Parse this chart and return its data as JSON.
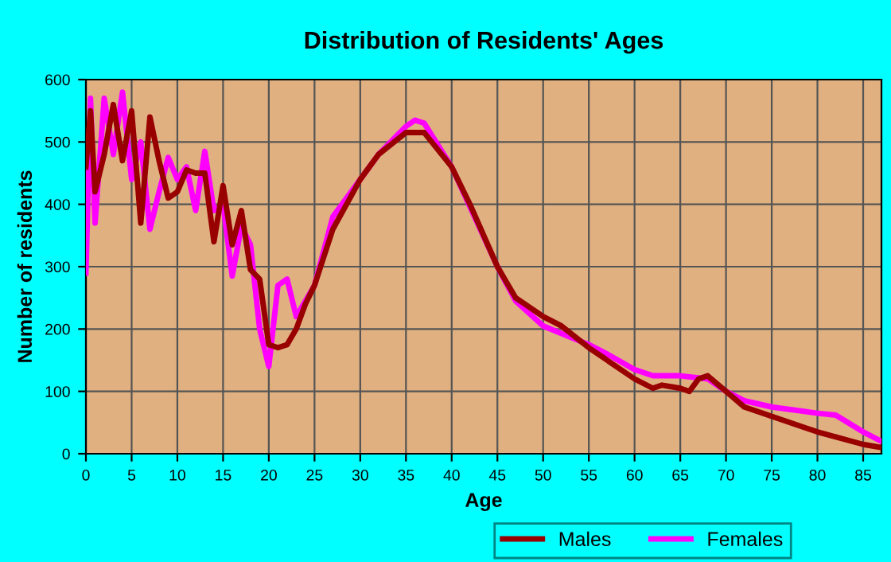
{
  "chart_data": {
    "type": "line",
    "title": "Distribution of Residents' Ages",
    "xlabel": "Age",
    "ylabel": "Number of residents",
    "series": [
      {
        "name": "Males",
        "color": "#990000",
        "x": [
          0,
          0.5,
          1,
          2,
          3,
          4,
          5,
          6,
          7,
          8,
          9,
          10,
          11,
          12,
          13,
          14,
          15,
          16,
          17,
          18,
          19,
          20,
          21,
          22,
          23,
          24,
          25,
          27,
          30,
          32,
          35,
          37,
          40,
          42,
          45,
          47,
          50,
          52,
          55,
          57,
          60,
          62,
          63,
          65,
          66,
          67,
          68,
          70,
          72,
          75,
          80,
          85,
          87
        ],
        "values": [
          460,
          550,
          420,
          480,
          560,
          470,
          550,
          370,
          540,
          470,
          410,
          420,
          455,
          450,
          450,
          340,
          430,
          335,
          390,
          295,
          280,
          175,
          170,
          175,
          200,
          240,
          270,
          360,
          440,
          480,
          515,
          515,
          460,
          400,
          300,
          250,
          220,
          205,
          170,
          150,
          120,
          105,
          110,
          105,
          100,
          120,
          125,
          100,
          75,
          60,
          35,
          15,
          10
        ]
      },
      {
        "name": "Females",
        "color": "#ff00ff",
        "x": [
          0,
          0.5,
          1,
          2,
          3,
          4,
          5,
          6,
          7,
          8,
          9,
          10,
          11,
          12,
          13,
          14,
          15,
          16,
          17,
          18,
          19,
          20,
          21,
          22,
          23,
          25,
          27,
          30,
          32,
          35,
          36,
          37,
          40,
          45,
          47,
          50,
          55,
          57,
          60,
          62,
          65,
          68,
          70,
          72,
          75,
          80,
          82,
          85,
          87
        ],
        "values": [
          290,
          570,
          370,
          570,
          480,
          580,
          440,
          500,
          360,
          420,
          475,
          440,
          460,
          390,
          485,
          390,
          400,
          285,
          365,
          335,
          200,
          140,
          270,
          280,
          220,
          270,
          380,
          440,
          480,
          525,
          535,
          530,
          460,
          300,
          245,
          205,
          175,
          160,
          135,
          125,
          125,
          120,
          100,
          85,
          75,
          65,
          62,
          35,
          20
        ]
      }
    ],
    "xlim": [
      0,
      87
    ],
    "xticks": [
      0,
      5,
      10,
      15,
      20,
      25,
      30,
      35,
      40,
      45,
      50,
      55,
      60,
      65,
      70,
      75,
      80,
      85
    ],
    "ylim": [
      0,
      600
    ],
    "yticks": [
      0,
      100,
      200,
      300,
      400,
      500,
      600
    ],
    "grid": true,
    "legend": "bottom",
    "marker": "none",
    "line_style": "solid"
  }
}
